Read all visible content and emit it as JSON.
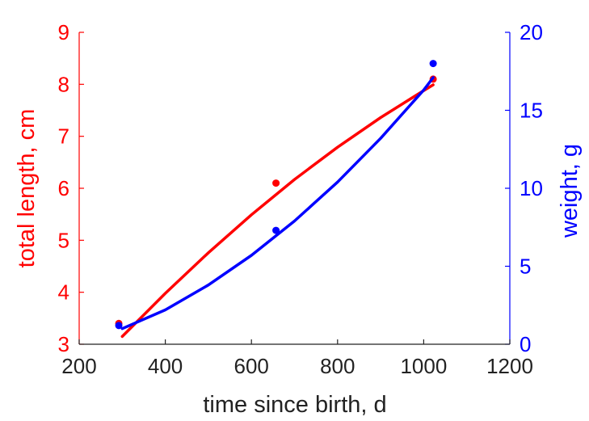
{
  "chart_data": {
    "type": "line",
    "xlabel": "time since birth, d",
    "xlim": [
      200,
      1200
    ],
    "xticks": [
      200,
      400,
      600,
      800,
      1000,
      1200
    ],
    "left_axis": {
      "label": "total length, cm",
      "color": "#ff0000",
      "ylim": [
        3,
        9
      ],
      "ticks": [
        3,
        4,
        5,
        6,
        7,
        8,
        9
      ]
    },
    "right_axis": {
      "label": "weight, g",
      "color": "#0000ff",
      "ylim": [
        0,
        20
      ],
      "ticks": [
        0,
        5,
        10,
        15,
        20
      ]
    },
    "series": [
      {
        "axis": "left",
        "color": "#ff0000",
        "points": [
          [
            292,
            3.4
          ],
          [
            657,
            6.1
          ],
          [
            1022,
            8.1
          ]
        ],
        "curve": [
          [
            300,
            3.15
          ],
          [
            400,
            3.98
          ],
          [
            500,
            4.76
          ],
          [
            600,
            5.49
          ],
          [
            700,
            6.17
          ],
          [
            800,
            6.79
          ],
          [
            900,
            7.36
          ],
          [
            1000,
            7.88
          ],
          [
            1022,
            7.99
          ]
        ]
      },
      {
        "axis": "right",
        "color": "#0000ff",
        "points": [
          [
            292,
            1.2
          ],
          [
            657,
            7.3
          ],
          [
            1022,
            18.0
          ]
        ],
        "curve": [
          [
            300,
            1.0
          ],
          [
            400,
            2.2
          ],
          [
            500,
            3.8
          ],
          [
            600,
            5.7
          ],
          [
            700,
            7.9
          ],
          [
            800,
            10.4
          ],
          [
            900,
            13.2
          ],
          [
            1000,
            16.3
          ],
          [
            1022,
            17.1
          ]
        ]
      }
    ],
    "grid": false
  }
}
